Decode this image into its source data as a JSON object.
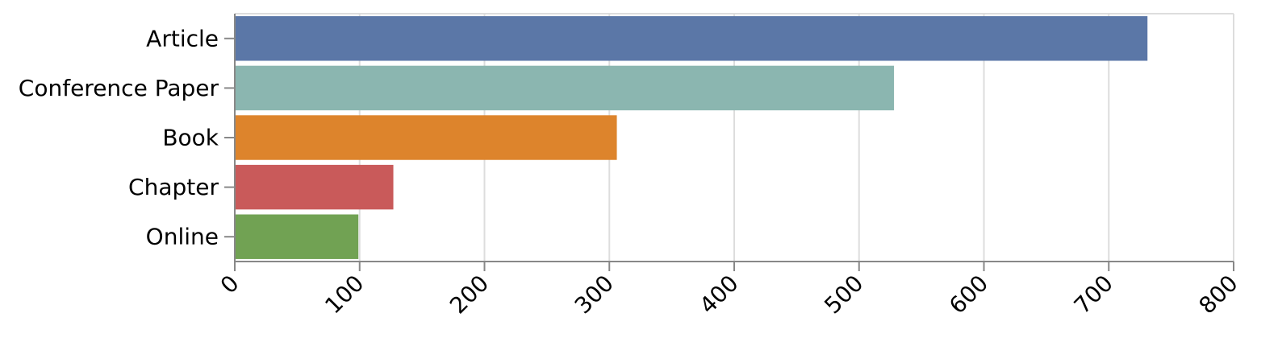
{
  "chart_data": {
    "type": "bar",
    "orientation": "horizontal",
    "title": "",
    "xlabel": "",
    "ylabel": "",
    "categories": [
      "Article",
      "Conference Paper",
      "Book",
      "Chapter",
      "Online"
    ],
    "values": [
      731,
      528,
      306,
      127,
      99
    ],
    "colors": [
      "#5b77a7",
      "#8bb6b0",
      "#dd842c",
      "#c95a5a",
      "#71a253"
    ],
    "xlim": [
      0,
      800
    ],
    "xticks": [
      "0",
      "100",
      "200",
      "300",
      "400",
      "500",
      "600",
      "700",
      "800"
    ],
    "grid": true,
    "legend": "none"
  }
}
